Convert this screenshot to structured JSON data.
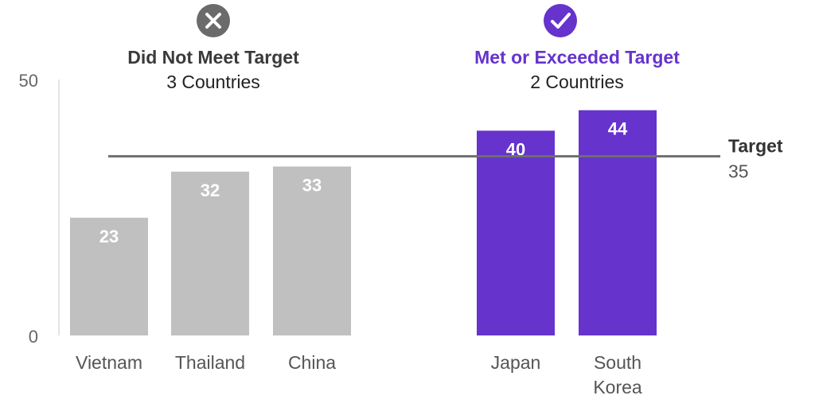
{
  "chart_data": {
    "type": "bar",
    "categories": [
      "Vietnam",
      "Thailand",
      "China",
      "Japan",
      "South Korea"
    ],
    "category_lines": [
      [
        "Vietnam"
      ],
      [
        "Thailand"
      ],
      [
        "China"
      ],
      [
        "Japan"
      ],
      [
        "South",
        "Korea"
      ]
    ],
    "values": [
      23,
      32,
      33,
      40,
      44
    ],
    "value_labels": [
      "23",
      "32",
      "33",
      "40",
      "44"
    ],
    "groups": [
      {
        "title": "Did Not Meet Target",
        "subtitle": "3 Countries",
        "icon": "close-icon",
        "color": "#c0c0c0",
        "title_color": "#3a3a3a",
        "icon_color": "#6b6b6b",
        "categories": [
          "Vietnam",
          "Thailand",
          "China"
        ]
      },
      {
        "title": "Met or Exceeded Target",
        "subtitle": "2 Countries",
        "icon": "check-icon",
        "color": "#6633cc",
        "title_color": "#6633cc",
        "icon_color": "#6633cc",
        "categories": [
          "Japan",
          "South Korea"
        ]
      }
    ],
    "target": {
      "label": "Target",
      "value": 35,
      "value_label": "35",
      "color": "#6e6e6e"
    },
    "ylim": [
      0,
      50
    ],
    "yticks": [
      "0",
      "50"
    ],
    "xlabel": "",
    "ylabel": "",
    "grid": false
  }
}
